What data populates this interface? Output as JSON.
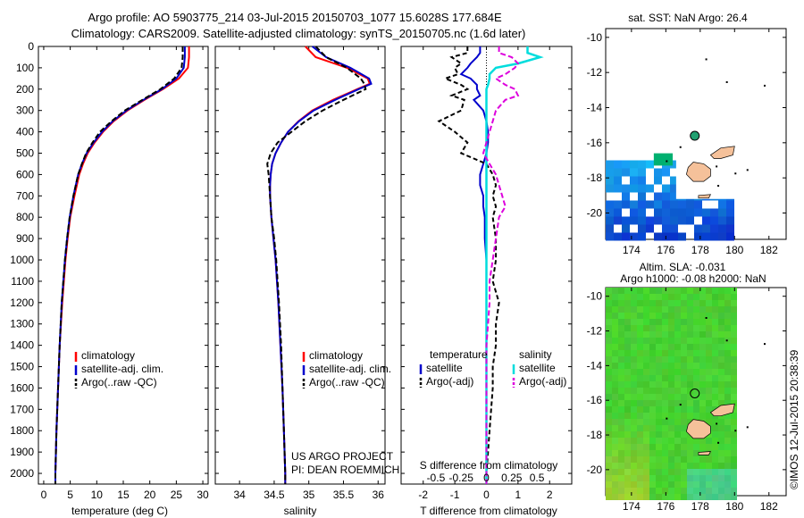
{
  "title": {
    "line1": "Argo profile: AO 5903775_214 03-Jul-2015 20150703_1077 15.6028S 177.684E",
    "line2": "Climatology: CARS2009. Satellite-adjusted climatology: synTS_20150705.nc (1.6d later)"
  },
  "depth_ticks": [
    0,
    100,
    200,
    300,
    400,
    500,
    600,
    700,
    800,
    900,
    1000,
    1100,
    1200,
    1300,
    1400,
    1500,
    1600,
    1700,
    1800,
    1900,
    2000
  ],
  "colors": {
    "climatology": "#ff0000",
    "satellite": "#0000cc",
    "argo": "#000000",
    "cyan": "#00dddd",
    "magenta": "#dd00dd",
    "land": "#f5c19a"
  },
  "chart_data": [
    {
      "type": "line",
      "name": "temperature",
      "xlabel": "temperature (deg C)",
      "xlim": [
        -1,
        31
      ],
      "xticks": [
        0,
        5,
        10,
        15,
        20,
        25,
        30
      ],
      "ylim": [
        2050,
        0
      ],
      "legend": [
        "climatology",
        "satellite-adj. clim.",
        "Argo(..raw -QC)"
      ],
      "depth": [
        0,
        50,
        100,
        150,
        200,
        250,
        300,
        350,
        400,
        450,
        500,
        550,
        600,
        700,
        800,
        900,
        1000,
        1200,
        1400,
        1600,
        1800,
        2000,
        2050
      ],
      "series": [
        {
          "name": "climatology",
          "values": [
            27.4,
            27.4,
            27.2,
            25.5,
            22.5,
            19.0,
            15.8,
            13.2,
            11.2,
            9.6,
            8.3,
            7.4,
            6.7,
            5.8,
            5.0,
            4.5,
            4.1,
            3.5,
            3.0,
            2.7,
            2.4,
            2.2,
            2.2
          ]
        },
        {
          "name": "satellite-adj. clim.",
          "values": [
            26.6,
            26.6,
            26.4,
            25.0,
            22.3,
            18.8,
            15.6,
            13.0,
            11.0,
            9.4,
            8.1,
            7.2,
            6.5,
            5.6,
            4.9,
            4.4,
            4.0,
            3.4,
            3.0,
            2.7,
            2.4,
            2.2,
            2.2
          ]
        },
        {
          "name": "Argo(..raw -QC)",
          "values": [
            26.2,
            26.2,
            26.0,
            24.6,
            22.0,
            18.6,
            15.3,
            12.8,
            10.6,
            9.2,
            8.0,
            7.2,
            6.5,
            5.6,
            4.9,
            4.4,
            4.0,
            3.4,
            3.0,
            2.7,
            2.4,
            2.2,
            2.2
          ]
        }
      ]
    },
    {
      "type": "line",
      "name": "salinity",
      "xlabel": "salinity",
      "xlim": [
        33.65,
        36.1
      ],
      "xticks": [
        34,
        34.5,
        35,
        35.5,
        36
      ],
      "ylim": [
        2050,
        0
      ],
      "legend": [
        "climatology",
        "satellite-adj. clim.",
        "Argo(..raw -QC)"
      ],
      "annotations": [
        "US ARGO PROJECT",
        "PI: DEAN ROEMMICH"
      ],
      "depth": [
        0,
        50,
        100,
        150,
        175,
        200,
        250,
        300,
        350,
        400,
        450,
        500,
        550,
        600,
        650,
        700,
        800,
        900,
        1000,
        1200,
        1400,
        1600,
        1800,
        2000,
        2050
      ],
      "series": [
        {
          "name": "climatology",
          "values": [
            34.95,
            35.1,
            35.55,
            35.85,
            35.88,
            35.7,
            35.35,
            35.05,
            34.85,
            34.7,
            34.6,
            34.52,
            34.47,
            34.45,
            34.44,
            34.44,
            34.46,
            34.49,
            34.52,
            34.56,
            34.59,
            34.62,
            34.64,
            34.66,
            34.66
          ]
        },
        {
          "name": "satellite-adj. clim.",
          "values": [
            35.05,
            35.25,
            35.6,
            35.87,
            35.9,
            35.72,
            35.38,
            35.07,
            34.86,
            34.7,
            34.6,
            34.52,
            34.47,
            34.45,
            34.44,
            34.44,
            34.46,
            34.49,
            34.52,
            34.56,
            34.59,
            34.62,
            34.64,
            34.66,
            34.66
          ]
        },
        {
          "name": "Argo(..raw -QC)",
          "values": [
            35.1,
            35.25,
            35.55,
            35.75,
            35.8,
            35.82,
            35.5,
            35.2,
            34.95,
            34.75,
            34.55,
            34.45,
            34.4,
            34.42,
            34.43,
            34.44,
            34.46,
            34.5,
            34.53,
            34.57,
            34.6,
            34.62,
            34.64,
            34.66,
            34.66
          ]
        }
      ]
    },
    {
      "type": "line",
      "name": "differences",
      "xlabel": "T difference from climatology",
      "xlabel_top": "S difference from climatology",
      "xlim": [
        -2.7,
        2.7
      ],
      "xticks": [
        -2,
        -1,
        0,
        1,
        2
      ],
      "top_ticks": [
        {
          "label": "-0.5",
          "pos": -1.6
        },
        {
          "label": "-0.25",
          "pos": -0.8
        },
        {
          "label": "0",
          "pos": 0
        },
        {
          "label": "0.25",
          "pos": 0.8
        },
        {
          "label": "0.5",
          "pos": 1.6
        }
      ],
      "ylim": [
        2050,
        0
      ],
      "legend_groups": [
        "temperature",
        "salinity"
      ],
      "legend": [
        "satellite",
        "Argo(-adj)",
        "satellite",
        "Argo(-adj)"
      ],
      "depth": [
        0,
        30,
        50,
        80,
        100,
        130,
        150,
        180,
        200,
        230,
        250,
        300,
        350,
        400,
        450,
        500,
        550,
        600,
        650,
        700,
        750,
        800,
        900,
        1000,
        1100,
        1200,
        1300,
        1400,
        1500,
        1600,
        1700,
        1800,
        1900,
        2000,
        2050
      ],
      "series": [
        {
          "name": "temperature satellite",
          "values": [
            -0.2,
            -0.2,
            -0.3,
            -0.5,
            -0.6,
            -0.8,
            -0.5,
            -0.3,
            -0.3,
            -0.2,
            -0.4,
            -0.1,
            0,
            0.05,
            0.05,
            0,
            -0.1,
            -0.2,
            -0.2,
            -0.1,
            -0.1,
            -0.05,
            -0.05,
            0,
            0,
            0,
            0,
            0,
            0,
            0,
            0,
            0,
            0,
            0,
            0
          ]
        },
        {
          "name": "temperature Argo(-adj)",
          "values": [
            -0.6,
            -0.6,
            -1.1,
            -0.8,
            -1.0,
            -0.9,
            -1.3,
            -0.8,
            -0.6,
            -1.1,
            -0.7,
            -0.8,
            -1.5,
            -1.0,
            -0.6,
            -0.8,
            0,
            0.2,
            0.3,
            0.2,
            0.3,
            0.2,
            0.3,
            0.3,
            0.2,
            0.4,
            0.3,
            0.3,
            0.2,
            0.2,
            0.15,
            0.1,
            0.05,
            0,
            0
          ]
        },
        {
          "name": "salinity satellite",
          "values": [
            1.3,
            1.3,
            1.7,
            1.0,
            0.3,
            0.1,
            0.1,
            0.05,
            0,
            0,
            0,
            0,
            0,
            0,
            0,
            0,
            0,
            0,
            0,
            0,
            0,
            0,
            0,
            0,
            0,
            0,
            0,
            0,
            0,
            0,
            0,
            0,
            0,
            0,
            0
          ]
        },
        {
          "name": "salinity Argo(-adj)",
          "values": [
            0.4,
            0.4,
            0.8,
            1.0,
            0.9,
            0.6,
            0.3,
            0.6,
            0.9,
            1.0,
            0.6,
            0.3,
            0.2,
            0.1,
            0,
            -0.1,
            0.1,
            0.3,
            0.4,
            0.5,
            0.6,
            0.4,
            0.3,
            0.2,
            0.1,
            0.1,
            0.05,
            0,
            0,
            0,
            0,
            0,
            0,
            0,
            0
          ]
        }
      ]
    },
    {
      "type": "heatmap",
      "name": "sst-map",
      "title": "sat. SST: NaN Argo: 26.4",
      "xlim": [
        172.5,
        183
      ],
      "ylim": [
        -21.5,
        -9.5
      ],
      "xticks": [
        174,
        176,
        178,
        180,
        182
      ],
      "yticks": [
        -10,
        -12,
        -14,
        -16,
        -18,
        -20
      ],
      "argo_position": [
        177.684,
        -15.6028
      ]
    },
    {
      "type": "heatmap",
      "name": "sla-map",
      "title_line1": "Altim. SLA: -0.031",
      "title_line2": "Argo h1000: -0.08 h2000: NaN",
      "xlim": [
        172.5,
        183
      ],
      "ylim": [
        -21.5,
        -9.5
      ],
      "xticks": [
        174,
        176,
        178,
        180,
        182
      ],
      "yticks": [
        -10,
        -12,
        -14,
        -16,
        -18,
        -20
      ],
      "argo_position": [
        177.684,
        -15.6028
      ]
    }
  ],
  "watermark": "©IMOS 12-Jul-2015 20:38:39"
}
